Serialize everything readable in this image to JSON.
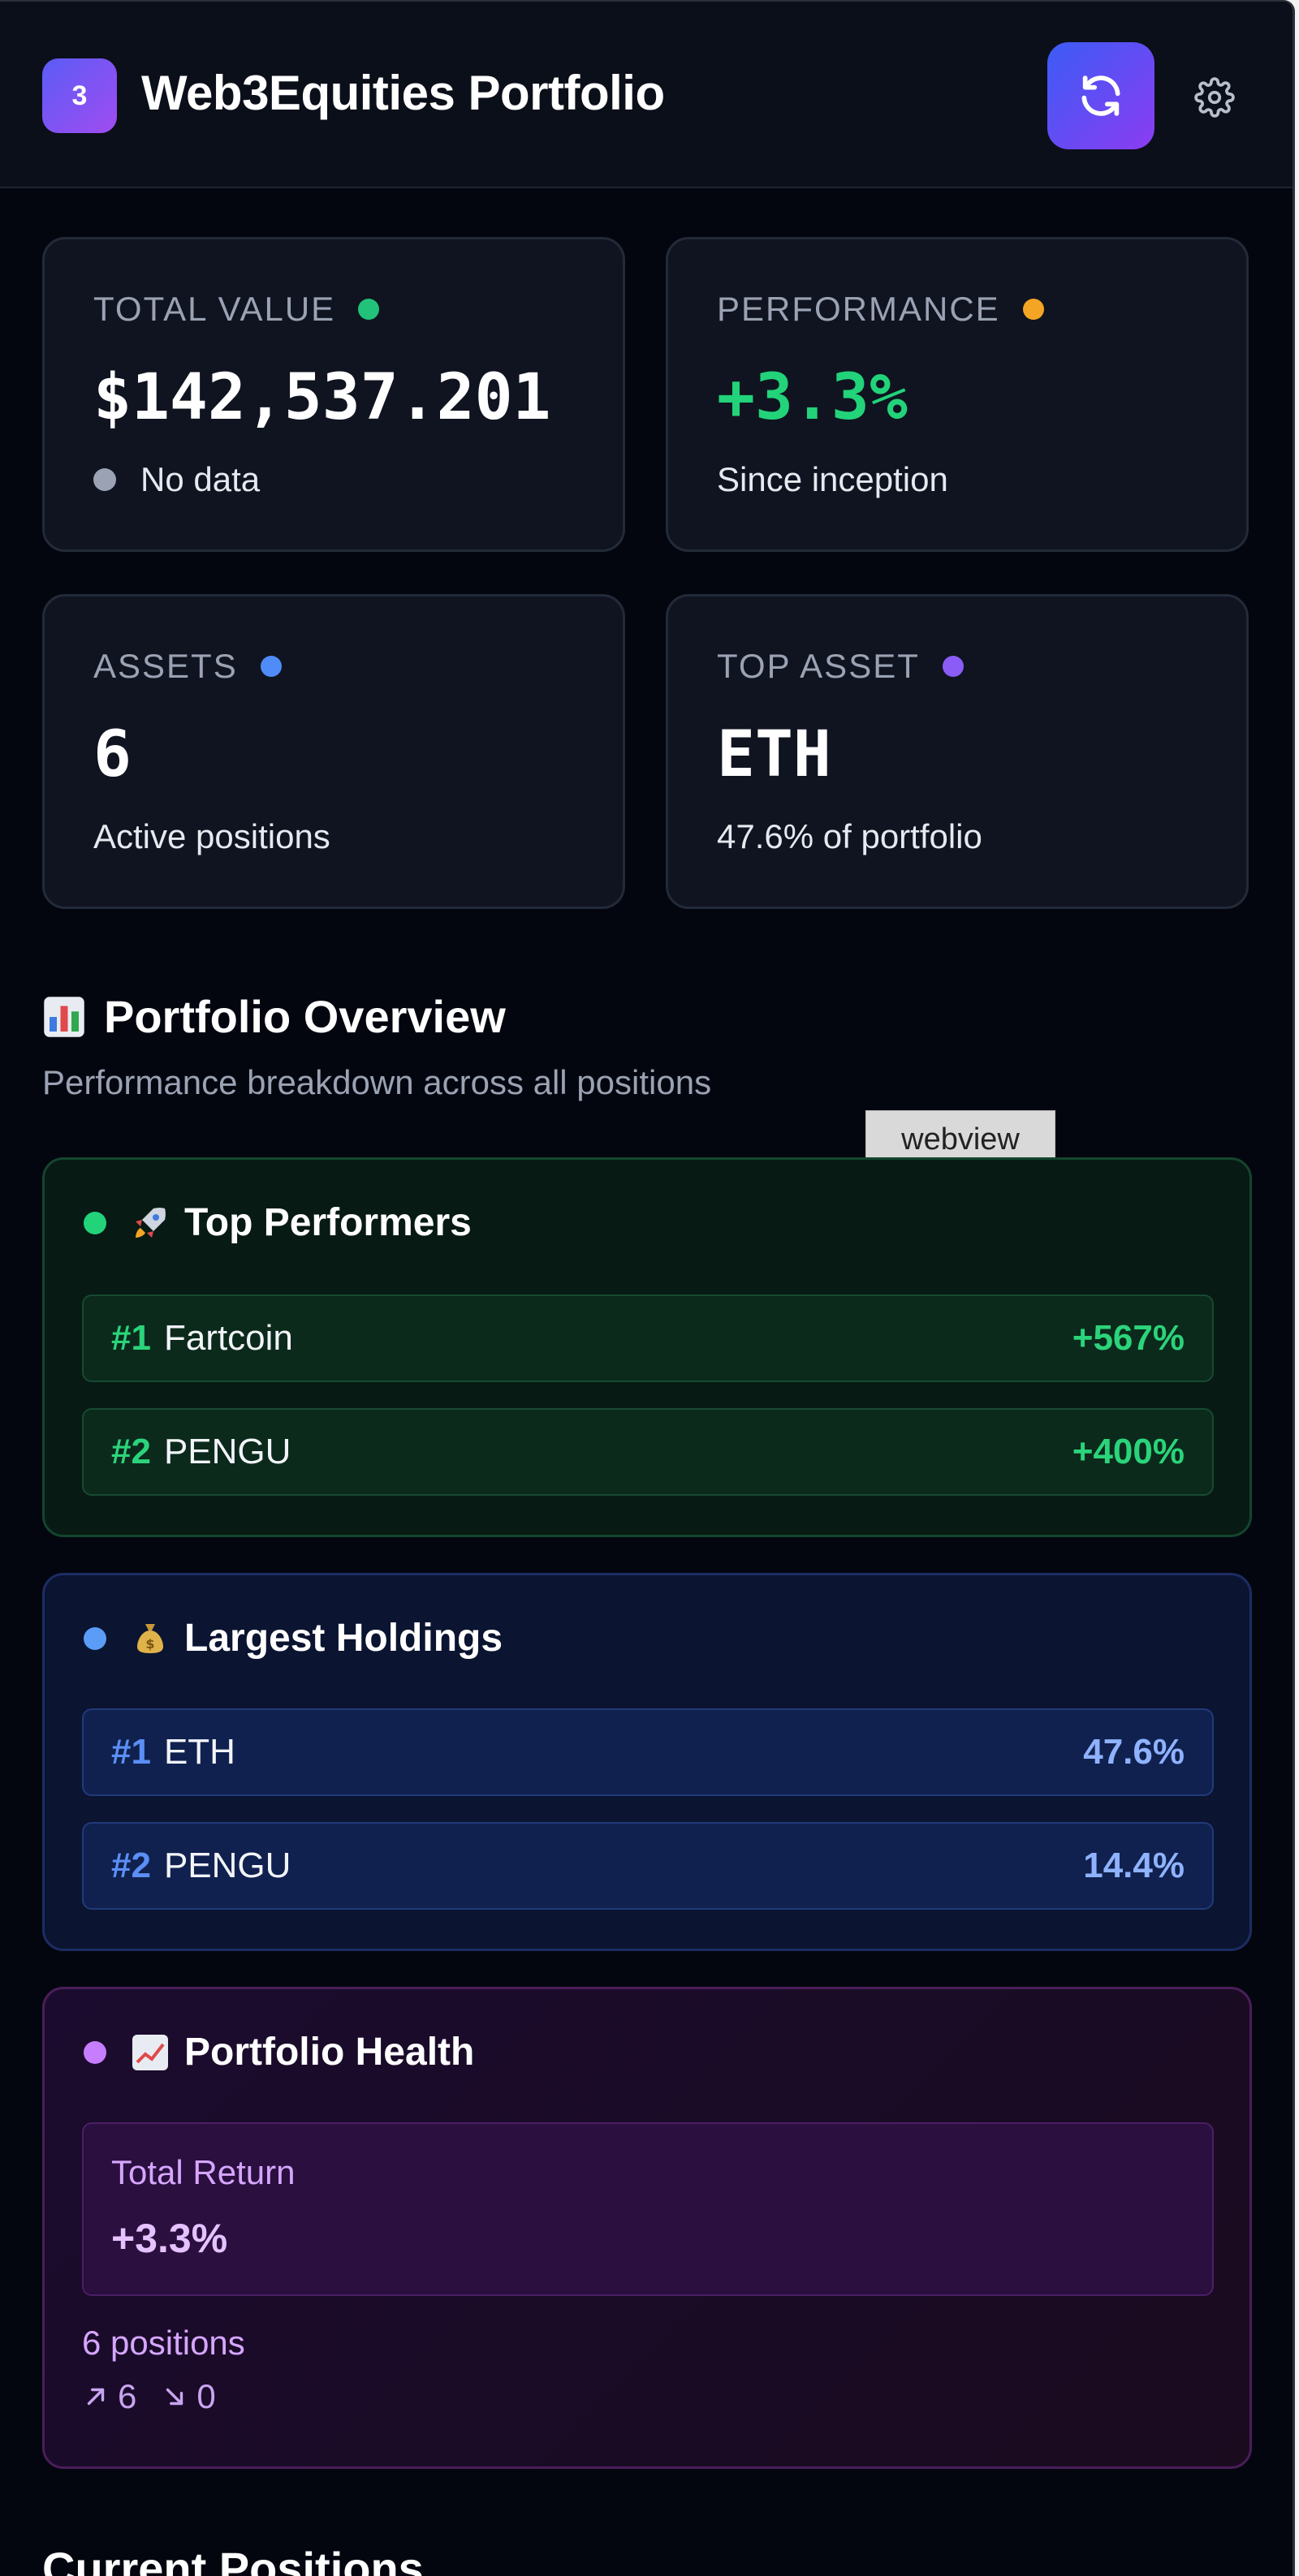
{
  "header": {
    "logo_text": "3",
    "title": "Web3Equities Portfolio"
  },
  "stats": {
    "total_value": {
      "label": "TOTAL VALUE",
      "value": "$142,537.201",
      "sub": "No data",
      "dot_color": "#22c27a"
    },
    "performance": {
      "label": "PERFORMANCE",
      "value": "+3.3%",
      "sub": "Since inception",
      "dot_color": "#f5a524",
      "value_color": "#22d37a"
    },
    "assets": {
      "label": "ASSETS",
      "value": "6",
      "sub": "Active positions",
      "dot_color": "#4f8cf7"
    },
    "top_asset": {
      "label": "TOP ASSET",
      "value": "ETH",
      "sub": "47.6% of portfolio",
      "dot_color": "#8b5cf6"
    }
  },
  "overview": {
    "title": "Portfolio Overview",
    "subtitle": "Performance breakdown across all positions",
    "tooltip": "webview",
    "top_performers": {
      "title": "Top Performers",
      "items": [
        {
          "rank": "#1",
          "name": "Fartcoin",
          "value": "+567%"
        },
        {
          "rank": "#2",
          "name": "PENGU",
          "value": "+400%"
        }
      ]
    },
    "largest_holdings": {
      "title": "Largest Holdings",
      "items": [
        {
          "rank": "#1",
          "name": "ETH",
          "value": "47.6%"
        },
        {
          "rank": "#2",
          "name": "PENGU",
          "value": "14.4%"
        }
      ]
    },
    "health": {
      "title": "Portfolio Health",
      "total_return_label": "Total Return",
      "total_return_value": "+3.3%",
      "positions": "6 positions",
      "up_count": "6",
      "down_count": "0"
    }
  },
  "positions": {
    "title": "Current Positions"
  }
}
